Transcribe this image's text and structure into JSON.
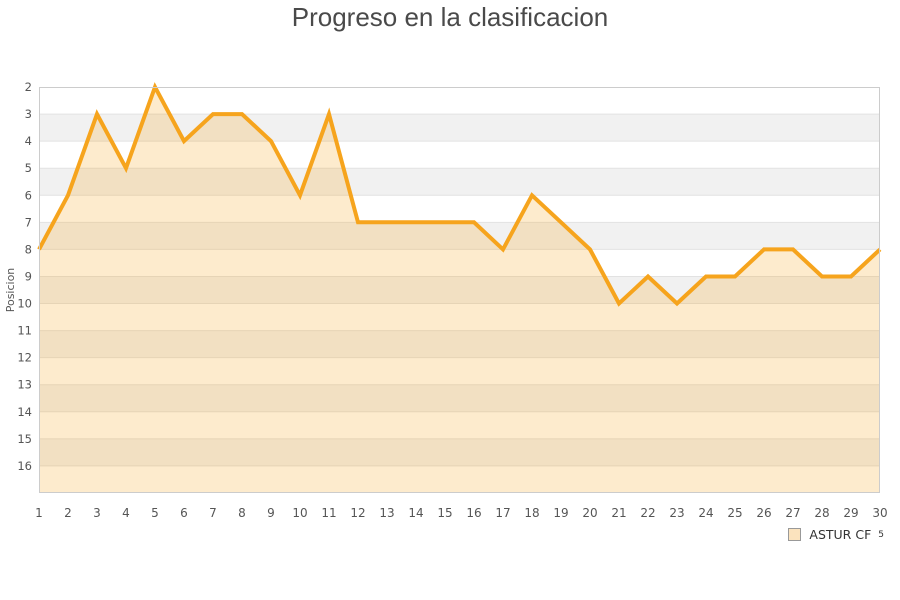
{
  "page": {
    "title": "Progreso en la clasificacion"
  },
  "legend": {
    "label": "ASTUR CF",
    "superscript": "5"
  },
  "colors": {
    "line": "#f6a41d",
    "area_fill": "#f6a41d",
    "area_opacity": 0.22,
    "band_light": "#ffffff",
    "band_dark": "#f1f1f1",
    "gridline": "#e2e2e2",
    "plot_border": "#cccccc",
    "tick_text": "#555555",
    "title_text": "#4a4a4a",
    "legend_marker_fill": "#fbe3be",
    "legend_marker_border": "#999999"
  },
  "chart_data": {
    "type": "area",
    "title": "Progreso en la clasificacion",
    "xlabel": "",
    "ylabel": "Posicion",
    "x": [
      1,
      2,
      3,
      4,
      5,
      6,
      7,
      8,
      9,
      10,
      11,
      12,
      13,
      14,
      15,
      16,
      17,
      18,
      19,
      20,
      21,
      22,
      23,
      24,
      25,
      26,
      27,
      28,
      29,
      30
    ],
    "series": [
      {
        "name": "ASTUR CF",
        "values": [
          8,
          6,
          3,
          5,
          2,
          4,
          3,
          3,
          4,
          6,
          3,
          7,
          7,
          7,
          7,
          7,
          8,
          6,
          7,
          8,
          10,
          9,
          10,
          9,
          9,
          8,
          8,
          9,
          9,
          8
        ]
      }
    ],
    "y_ticks": [
      2,
      3,
      4,
      5,
      6,
      7,
      8,
      9,
      10,
      11,
      12,
      13,
      14,
      15,
      16
    ],
    "ylim_top": 2,
    "ylim_bottom": 17,
    "y_axis_reversed": true,
    "grid": true,
    "alternating_bands": true,
    "legend_position": "bottom-right"
  }
}
